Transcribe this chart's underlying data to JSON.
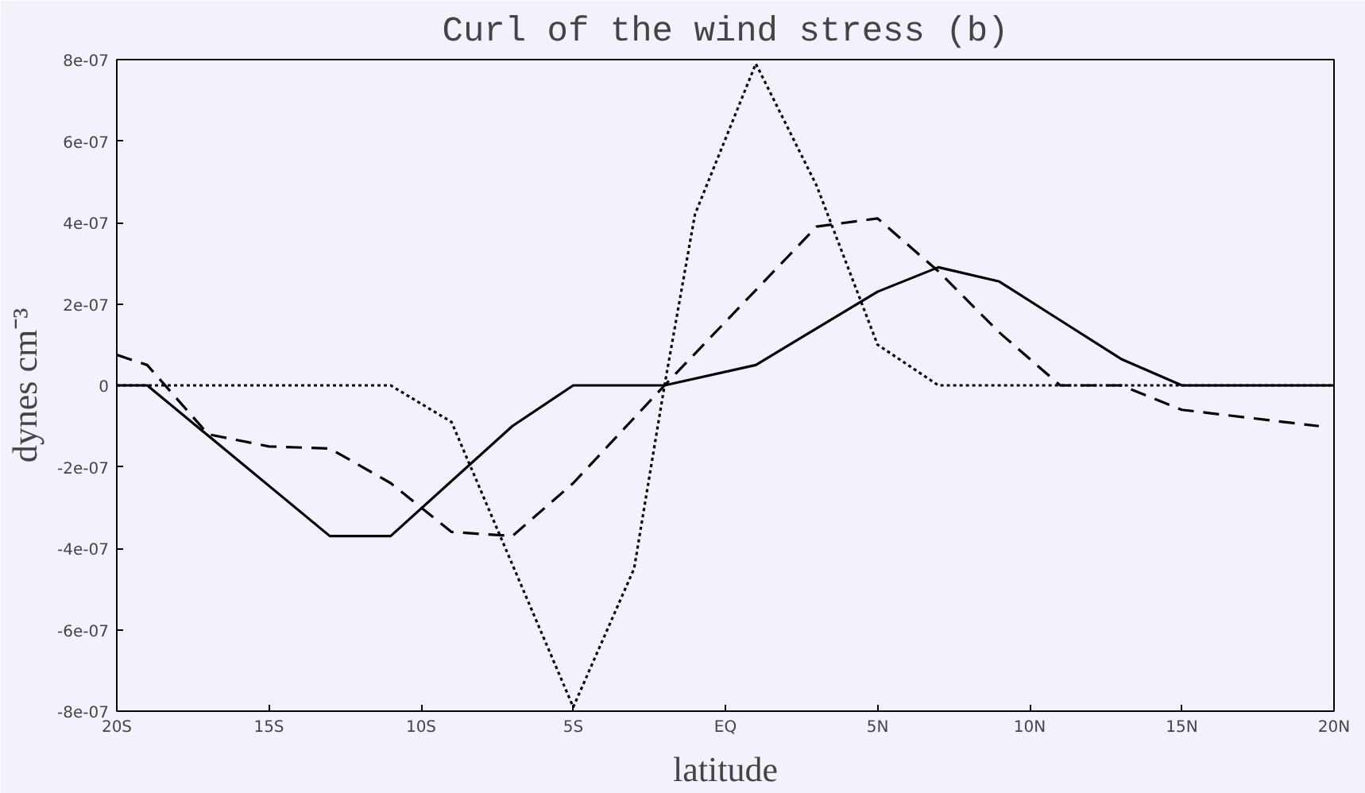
{
  "chart_data": {
    "type": "line",
    "title": "Curl of the wind stress (b)",
    "xlabel": "latitude",
    "ylabel": "dynes cm⁻³",
    "xlim": [
      -20,
      20
    ],
    "ylim": [
      -8e-07,
      8e-07
    ],
    "xticks": [
      {
        "value": -20,
        "label": "20S"
      },
      {
        "value": -15,
        "label": "15S"
      },
      {
        "value": -10,
        "label": "10S"
      },
      {
        "value": -5,
        "label": "5S"
      },
      {
        "value": 0,
        "label": "EQ"
      },
      {
        "value": 5,
        "label": "5N"
      },
      {
        "value": 10,
        "label": "10N"
      },
      {
        "value": 15,
        "label": "15N"
      },
      {
        "value": 20,
        "label": "20N"
      }
    ],
    "yticks": [
      {
        "value": -8e-07,
        "label": "-8e-07"
      },
      {
        "value": -6e-07,
        "label": "-6e-07"
      },
      {
        "value": -4e-07,
        "label": "-4e-07"
      },
      {
        "value": -2e-07,
        "label": "-2e-07"
      },
      0,
      {
        "value": 2e-07,
        "label": "2e-07"
      },
      {
        "value": 4e-07,
        "label": "4e-07"
      },
      {
        "value": 6e-07,
        "label": "6e-07"
      },
      {
        "value": 8e-07,
        "label": "8e-07"
      }
    ],
    "grid": false,
    "series": [
      {
        "color": "#000000",
        "line_style": "solid",
        "x": [
          -20,
          -19,
          -13,
          -11,
          -7,
          -5,
          -2,
          1,
          5,
          7,
          9,
          11,
          13,
          15,
          18,
          20
        ],
        "values": [
          0,
          0,
          -3.7e-07,
          -3.7e-07,
          -1e-07,
          0,
          0,
          5e-08,
          2.3e-07,
          2.9e-07,
          2.55e-07,
          1.6e-07,
          6.5e-08,
          0,
          0,
          0
        ]
      },
      {
        "color": "#000000",
        "line_style": "dashed",
        "x": [
          -20,
          -19,
          -17,
          -15,
          -13,
          -11,
          -9,
          -7,
          -5,
          -2,
          3,
          5,
          7,
          9,
          11,
          13,
          15,
          19.5
        ],
        "values": [
          7.5e-08,
          5e-08,
          -1.2e-07,
          -1.5e-07,
          -1.55e-07,
          -2.4e-07,
          -3.6e-07,
          -3.7e-07,
          -2.4e-07,
          0,
          3.9e-07,
          4.1e-07,
          2.8e-07,
          1.3e-07,
          0,
          0,
          -6e-08,
          -1e-07
        ]
      },
      {
        "color": "#000000",
        "line_style": "dotted",
        "x": [
          -20,
          -11,
          -9,
          -5,
          -3,
          -2,
          -1,
          1,
          3,
          5,
          7,
          20
        ],
        "values": [
          0,
          0,
          -9e-08,
          -7.9e-07,
          -4.5e-07,
          0,
          4.2e-07,
          7.9e-07,
          4.9e-07,
          1e-07,
          0,
          0
        ]
      }
    ]
  }
}
